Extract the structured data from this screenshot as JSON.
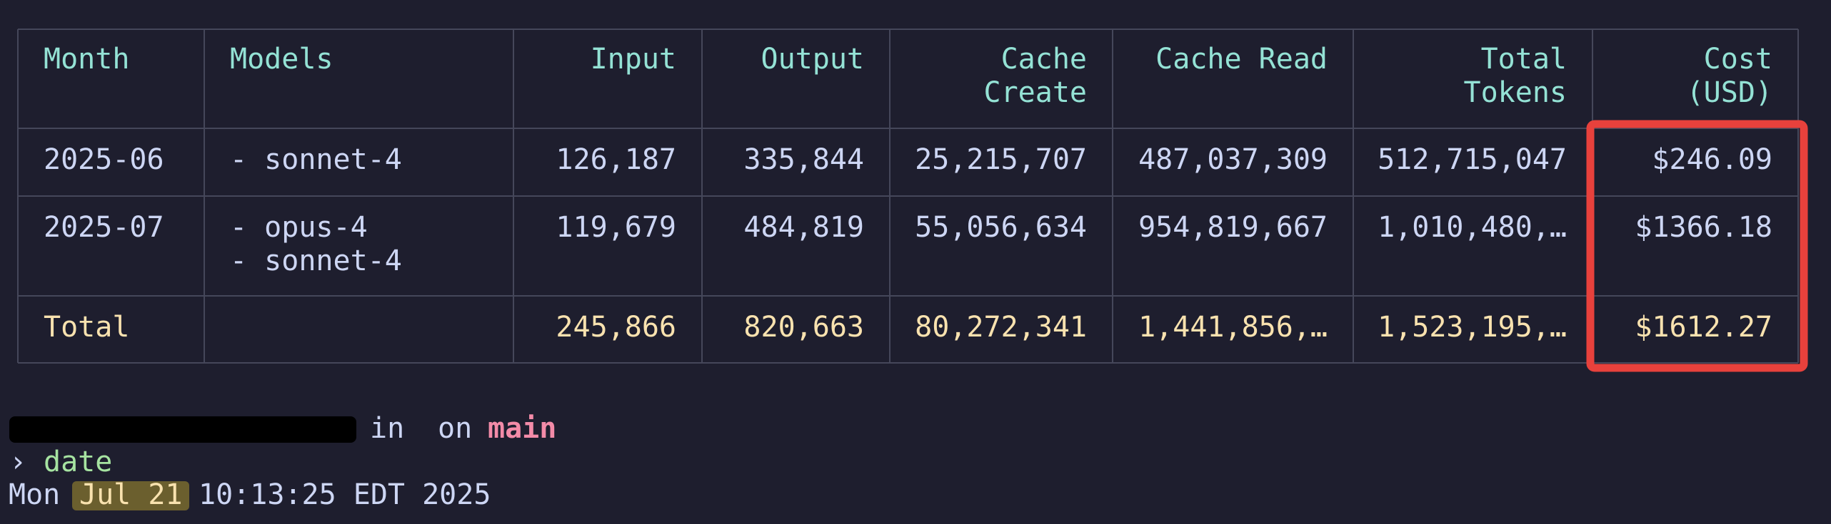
{
  "table": {
    "headers": [
      [
        "Month"
      ],
      [
        "Models"
      ],
      [
        "Input"
      ],
      [
        "Output"
      ],
      [
        "Cache",
        "Create"
      ],
      [
        "Cache Read"
      ],
      [
        "Total",
        "Tokens"
      ],
      [
        "Cost",
        "(USD)"
      ]
    ],
    "rows": [
      [
        "2025-06",
        [
          "- sonnet-4"
        ],
        "126,187",
        "335,844",
        "25,215,707",
        "487,037,309",
        "512,715,047",
        "$246.09"
      ],
      [
        "2025-07",
        [
          "- opus-4",
          "- sonnet-4"
        ],
        "119,679",
        "484,819",
        "55,056,634",
        "954,819,667",
        "1,010,480,…",
        "$1366.18"
      ]
    ],
    "total": {
      "label": "Total",
      "values": [
        "245,866",
        "820,663",
        "80,272,341",
        "1,441,856,…",
        "1,523,195,…",
        "$1612.27"
      ]
    }
  },
  "prompt": {
    "in": "in",
    "on": "on",
    "branch": "main"
  },
  "command": {
    "symbol": "›",
    "text": "date"
  },
  "output": {
    "day": "Mon",
    "date": "Jul 21",
    "rest": "10:13:25 EDT 2025"
  }
}
